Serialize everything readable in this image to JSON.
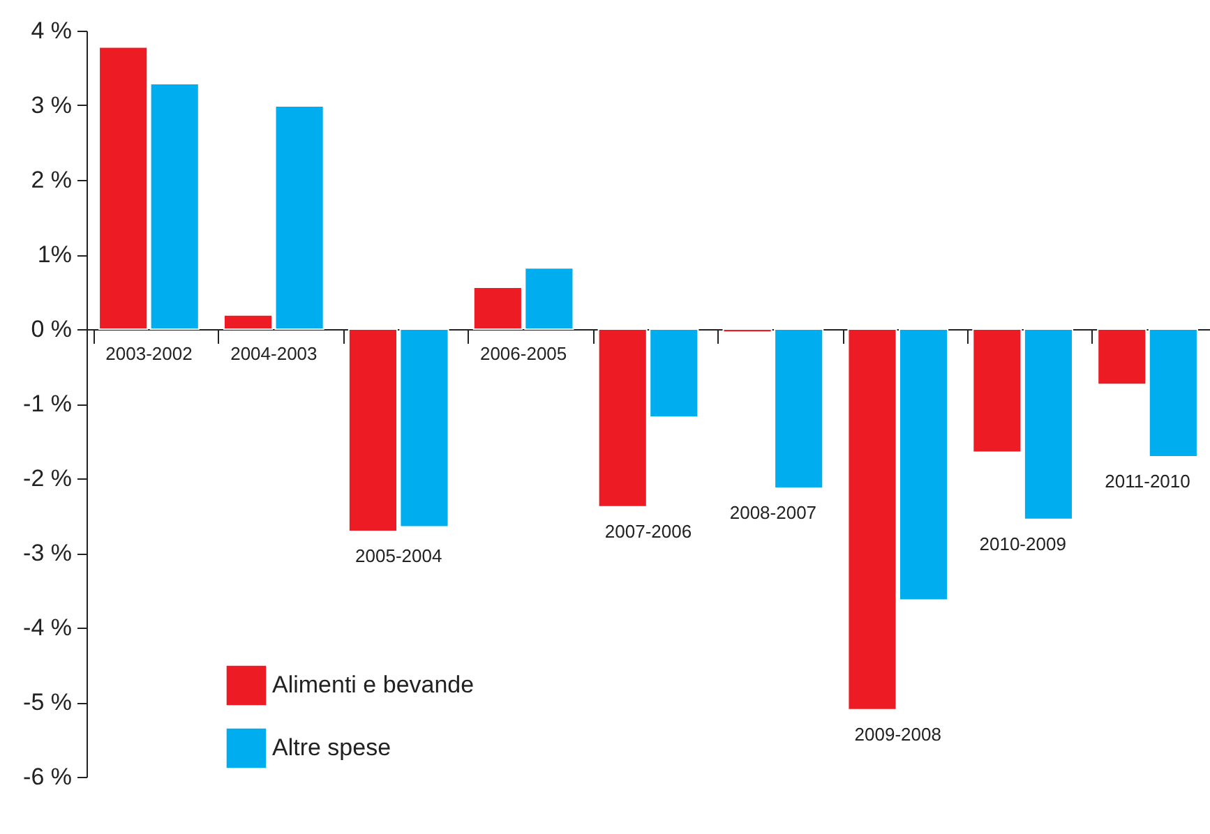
{
  "chart_data": {
    "type": "bar",
    "categories": [
      "2003-2002",
      "2004-2003",
      "2005-2004",
      "2006-2005",
      "2007-2006",
      "2008-2007",
      "2009-2008",
      "2010-2009",
      "2011-2010"
    ],
    "series": [
      {
        "name": "Alimenti e bevande",
        "color": "#ed1c24",
        "values": [
          3.78,
          0.19,
          -2.71,
          0.56,
          -2.38,
          -0.04,
          -5.1,
          -1.65,
          -0.74
        ]
      },
      {
        "name": "Altre spese",
        "color": "#00aeef",
        "values": [
          3.29,
          2.99,
          -2.65,
          0.82,
          -1.18,
          -2.13,
          -3.63,
          -2.55,
          -1.71
        ]
      }
    ],
    "ylim": [
      -6,
      4
    ],
    "yticks": [
      {
        "value": -6,
        "label": "-6 %"
      },
      {
        "value": -5,
        "label": "-5 %"
      },
      {
        "value": -4,
        "label": "-4 %"
      },
      {
        "value": -3,
        "label": "-3 %"
      },
      {
        "value": -2,
        "label": "-2 %"
      },
      {
        "value": -1,
        "label": "-1 %"
      },
      {
        "value": 0,
        "label": "0 %"
      },
      {
        "value": 1,
        "label": "1%"
      },
      {
        "value": 2,
        "label": "2 %"
      },
      {
        "value": 3,
        "label": "3 %"
      },
      {
        "value": 4,
        "label": "4 %"
      }
    ],
    "legend": "bottom left"
  }
}
